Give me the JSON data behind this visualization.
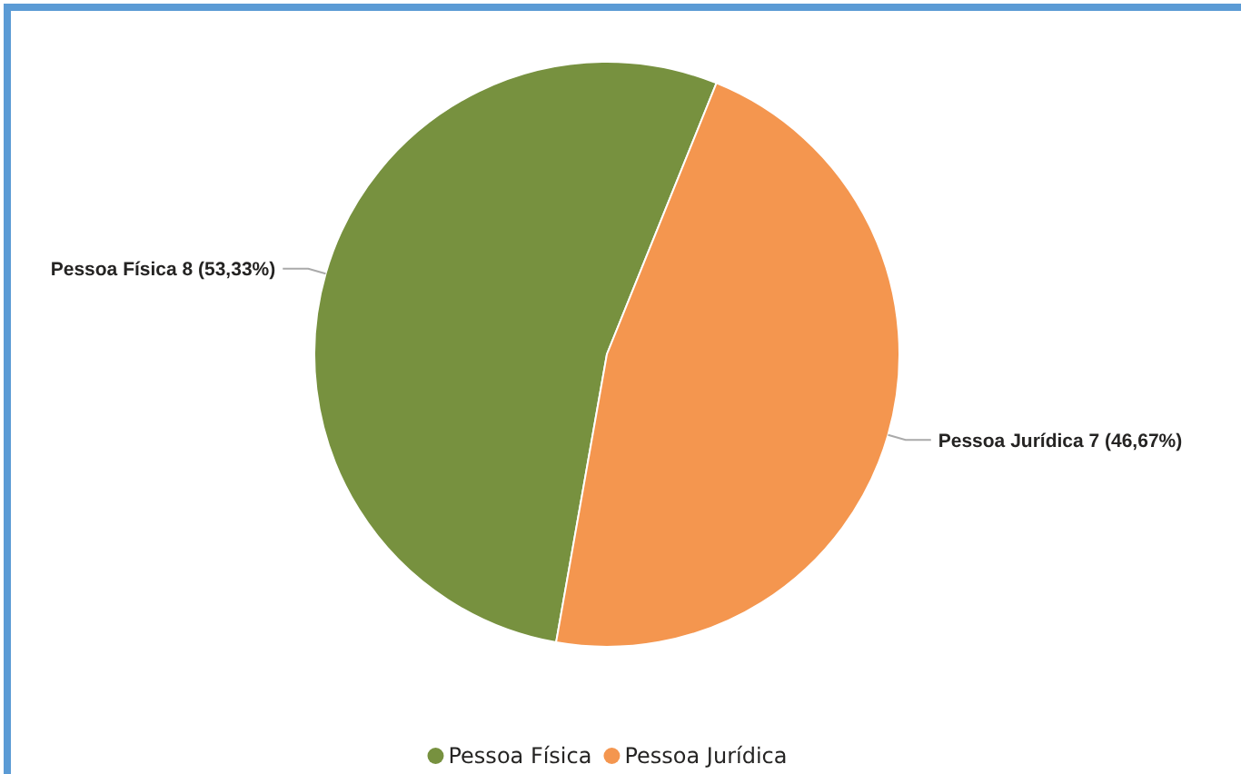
{
  "chart_data": {
    "type": "pie",
    "categories": [
      "Pessoa Física",
      "Pessoa Jurídica"
    ],
    "values": [
      8,
      7
    ],
    "colors": [
      "#77913f",
      "#f4964f"
    ],
    "value_labels": [
      "8 (53,33%)",
      "7 (46,67%)"
    ],
    "legend": "bottom"
  }
}
